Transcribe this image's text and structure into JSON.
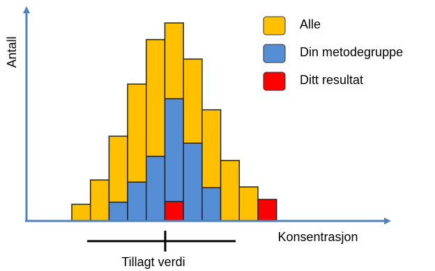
{
  "chart_data": {
    "type": "stacked-bar",
    "x_label": "Konsentrasjon",
    "y_label": "Antall",
    "annotation": "Tillagt verdi",
    "categories": [
      null,
      null,
      null,
      null,
      null,
      null,
      null,
      null,
      null,
      null,
      null
    ],
    "series": [
      {
        "name": "Ditt resultat",
        "color": "#ff0000",
        "values": [
          0,
          0,
          0,
          0,
          0,
          2.8,
          0,
          0,
          0,
          0,
          3.1
        ]
      },
      {
        "name": "Din metodegruppe",
        "color": "#558ed5",
        "values": [
          0,
          0,
          2.7,
          5.6,
          9.3,
          14.8,
          11.2,
          4.8,
          0,
          0,
          0
        ]
      },
      {
        "name": "Alle",
        "color": "#ffc000",
        "values": [
          2.4,
          5.9,
          9.5,
          14.1,
          16.8,
          10.9,
          12.1,
          11.2,
          8.7,
          4.9,
          0
        ]
      }
    ],
    "legend_order": [
      "Alle",
      "Din metodegruppe",
      "Ditt resultat"
    ],
    "ylim": [
      0,
      28.5
    ]
  }
}
